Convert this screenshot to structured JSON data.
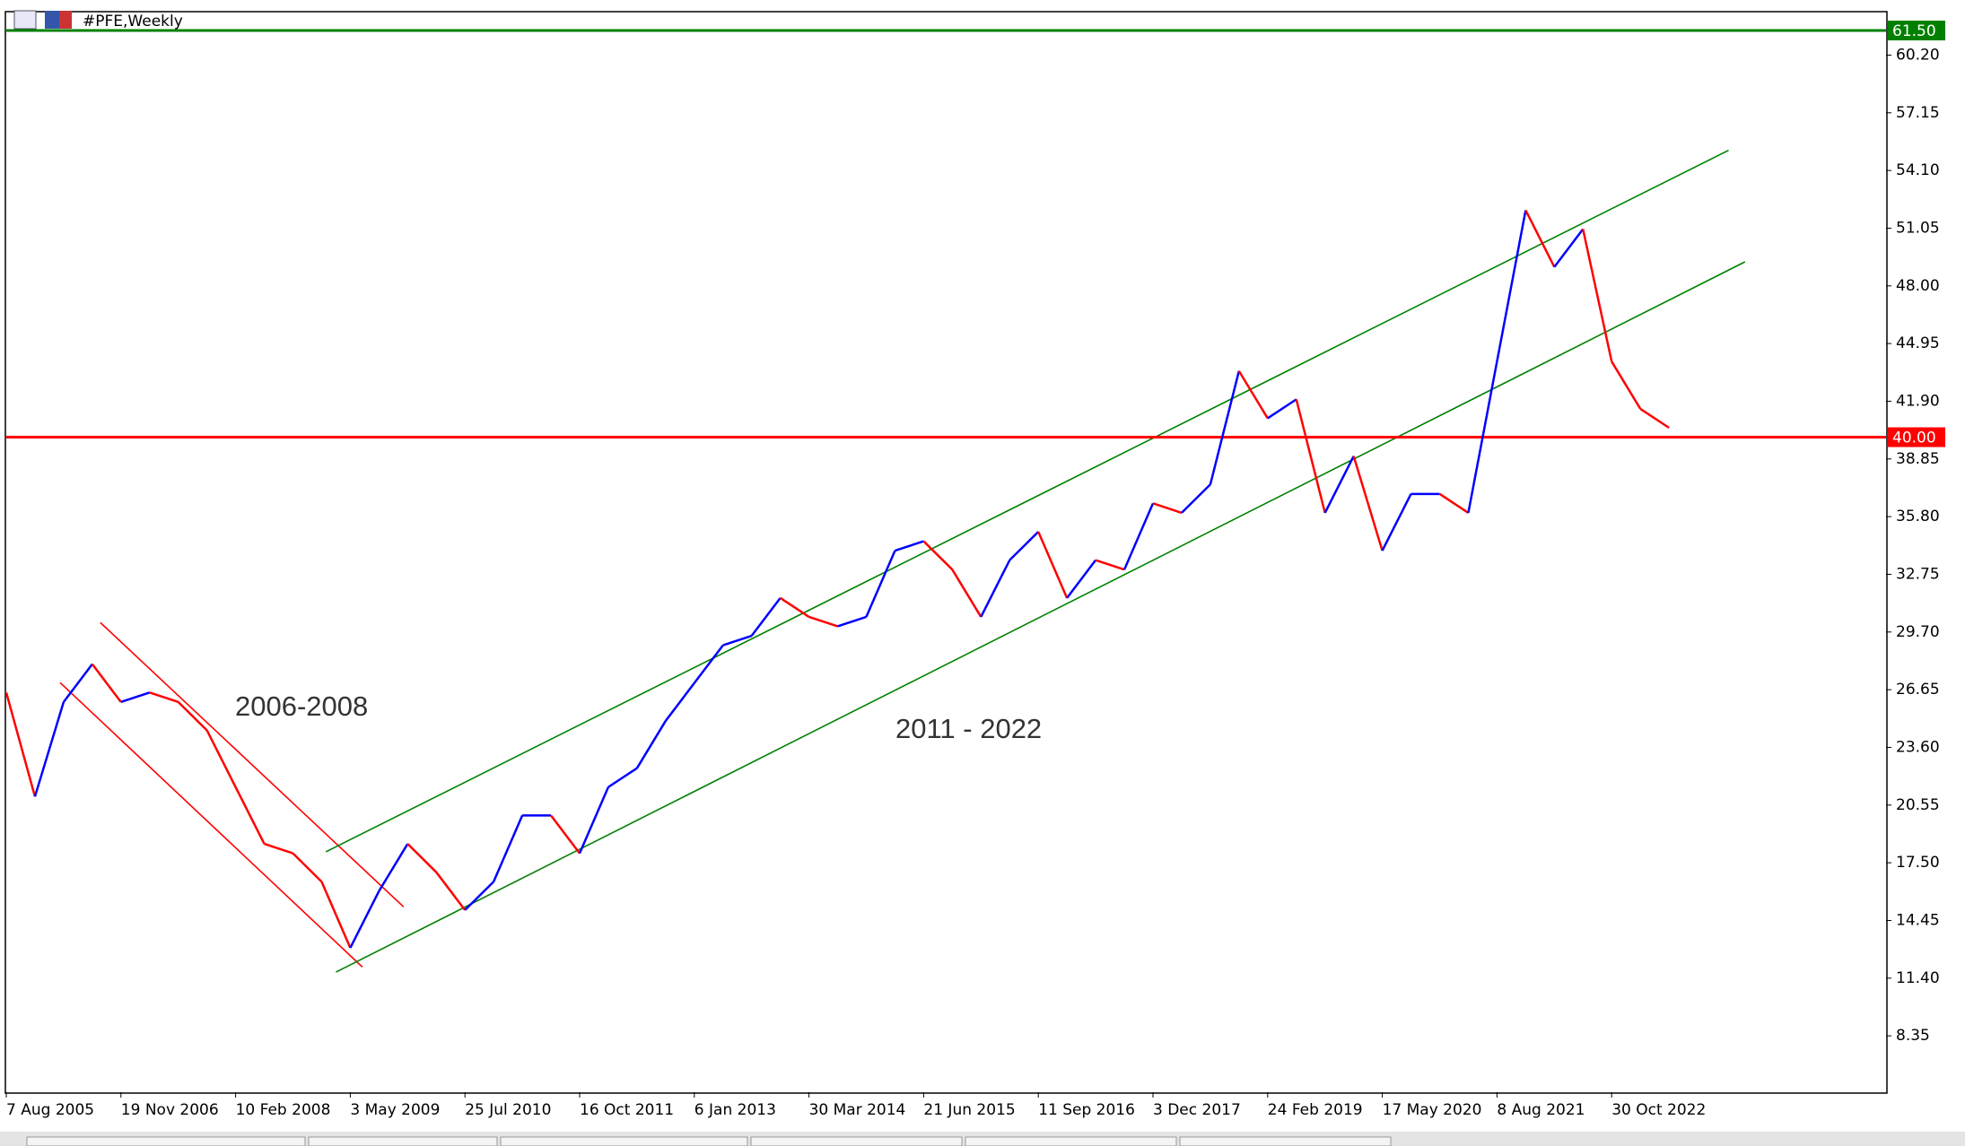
{
  "chart_data": {
    "type": "line",
    "title": "#PFE,Weekly",
    "categories": [
      "7 Aug 2005",
      null,
      null,
      null,
      "19 Nov 2006",
      null,
      null,
      null,
      "10 Feb 2008",
      null,
      null,
      null,
      "3 May 2009",
      null,
      null,
      null,
      "25 Jul 2010",
      null,
      null,
      null,
      "16 Oct 2011",
      null,
      null,
      null,
      "6 Jan 2013",
      null,
      null,
      null,
      "30 Mar 2014",
      null,
      null,
      null,
      "21 Jun 2015",
      null,
      null,
      null,
      "11 Sep 2016",
      null,
      null,
      null,
      "3 Dec 2017",
      null,
      null,
      null,
      "24 Feb 2019",
      null,
      null,
      null,
      "17 May 2020",
      null,
      null,
      null,
      "8 Aug 2021",
      null,
      null,
      null,
      "30 Oct 2022",
      null,
      null
    ],
    "values": [
      26.5,
      21,
      26,
      28,
      26,
      26.5,
      26,
      24.5,
      21.5,
      18.5,
      18,
      16.5,
      13,
      16,
      18.5,
      17,
      15,
      16.5,
      20,
      20,
      18,
      21.5,
      22.5,
      25,
      27,
      29,
      29.5,
      31.5,
      30.5,
      30,
      30.5,
      34,
      34.5,
      33,
      30.5,
      33.5,
      35,
      31.5,
      33.5,
      33,
      36.5,
      36,
      37.5,
      43.5,
      41,
      42,
      36,
      39,
      34,
      37,
      37,
      36,
      44,
      52,
      49,
      51,
      44,
      41.5,
      40.5
    ],
    "up_color": "#0000ff",
    "down_color": "#ff0000",
    "ylim": [
      5.37,
      62.45
    ],
    "yticks": [
      8.35,
      {
        "value": 11.4,
        "label": "11.40"
      },
      14.45,
      {
        "value": 17.5,
        "label": "17.50"
      },
      20.55,
      {
        "value": 23.6,
        "label": "23.60"
      },
      26.65,
      {
        "value": 29.7,
        "label": "29.70"
      },
      32.75,
      {
        "value": 35.8,
        "label": "35.80"
      },
      38.85,
      {
        "value": 41.9,
        "label": "41.90"
      },
      44.95,
      {
        "value": 48,
        "label": "48.00"
      },
      51.05,
      {
        "value": 54.1,
        "label": "54.10"
      },
      57.15,
      {
        "value": 60.2,
        "label": "60.20"
      }
    ],
    "levels": [
      {
        "value": 61.5,
        "label": "61.50",
        "color": "#008000"
      },
      {
        "value": 40,
        "label": "40.00",
        "color": "#ff0000"
      }
    ],
    "trendlines": [
      {
        "color": "#ff0000",
        "x": [
          3.28,
          13.86
        ],
        "y": [
          30.2,
          15.17
        ]
      },
      {
        "color": "#ff0000",
        "x": [
          1.88,
          12.42
        ],
        "y": [
          27.02,
          11.99
        ]
      },
      {
        "color": "#008000",
        "x": [
          11.15,
          60.08
        ],
        "y": [
          18.08,
          55.17
        ]
      },
      {
        "color": "#008000",
        "x": [
          11.5,
          60.65
        ],
        "y": [
          11.72,
          49.27
        ]
      }
    ],
    "annotations": [
      "2006-2008",
      "2011 - 2022"
    ]
  }
}
